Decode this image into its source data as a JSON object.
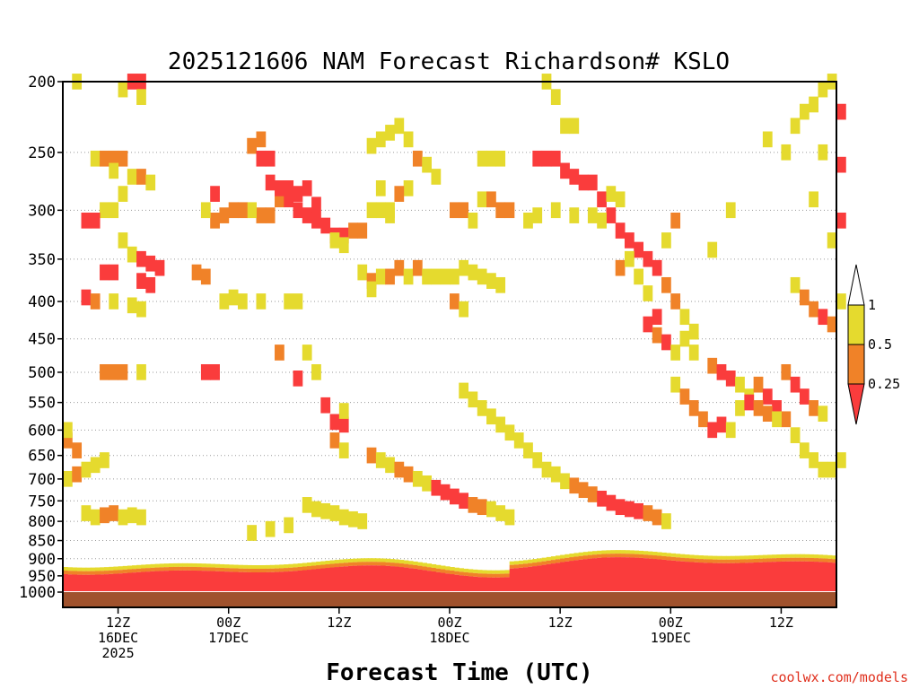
{
  "chart_data": {
    "type": "heatmap",
    "title": "2025121606 NAM Forecast Richardson# KSLO",
    "xlabel": "Forecast Time (UTC)",
    "credit": "coolwx.com/models",
    "y_scale": "log-pressure",
    "y_inverted": true,
    "ylim": [
      1000,
      200
    ],
    "yticks": [
      200,
      250,
      300,
      350,
      400,
      450,
      500,
      550,
      600,
      650,
      700,
      750,
      800,
      850,
      900,
      950,
      1000
    ],
    "grid": true,
    "x_range_hours": [
      0,
      84
    ],
    "xticks": [
      {
        "hour": 6,
        "line1": "12Z",
        "line2": "16DEC",
        "line3": "2025"
      },
      {
        "hour": 18,
        "line1": "00Z",
        "line2": "17DEC",
        "line3": ""
      },
      {
        "hour": 30,
        "line1": "12Z",
        "line2": "",
        "line3": ""
      },
      {
        "hour": 42,
        "line1": "00Z",
        "line2": "18DEC",
        "line3": ""
      },
      {
        "hour": 54,
        "line1": "12Z",
        "line2": "",
        "line3": ""
      },
      {
        "hour": 66,
        "line1": "00Z",
        "line2": "19DEC",
        "line3": ""
      },
      {
        "hour": 78,
        "line1": "12Z",
        "line2": "",
        "line3": ""
      }
    ],
    "legend": {
      "placement": "right",
      "levels": [
        "1",
        "0.5",
        "0.25"
      ],
      "bins": [
        {
          "range": "> 1",
          "color": "#ffffff"
        },
        {
          "range": "0.5 - 1",
          "color": "#e5da2e"
        },
        {
          "range": "0.25 - 0.5",
          "color": "#f08228"
        },
        {
          "range": "< 0.25",
          "color": "#fa3c3c"
        }
      ]
    },
    "colors": {
      "low": "#fa3c3c",
      "mid": "#f08228",
      "high": "#e5da2e",
      "ground": "#a0522d"
    },
    "near_surface_layer": {
      "description": "continuous layer with Richardson number below 0.25 near the ground"
    },
    "cells": [
      [
        1,
        200,
        1
      ],
      [
        3,
        205,
        0
      ],
      [
        6,
        205,
        1
      ],
      [
        7,
        200,
        3
      ],
      [
        8,
        200,
        3
      ],
      [
        8,
        210,
        1
      ],
      [
        3,
        255,
        1
      ],
      [
        4,
        255,
        2
      ],
      [
        5,
        255,
        2
      ],
      [
        6,
        255,
        2
      ],
      [
        5,
        265,
        1
      ],
      [
        7,
        270,
        1
      ],
      [
        8,
        270,
        2
      ],
      [
        9,
        275,
        1
      ],
      [
        6,
        285,
        1
      ],
      [
        4,
        300,
        1
      ],
      [
        5,
        300,
        1
      ],
      [
        2,
        310,
        3
      ],
      [
        3,
        310,
        3
      ],
      [
        6,
        330,
        1
      ],
      [
        7,
        345,
        1
      ],
      [
        8,
        350,
        3
      ],
      [
        9,
        355,
        3
      ],
      [
        10,
        360,
        3
      ],
      [
        4,
        365,
        3
      ],
      [
        5,
        365,
        3
      ],
      [
        8,
        375,
        3
      ],
      [
        9,
        380,
        3
      ],
      [
        2,
        395,
        3
      ],
      [
        3,
        400,
        2
      ],
      [
        5,
        400,
        1
      ],
      [
        7,
        405,
        1
      ],
      [
        8,
        410,
        1
      ],
      [
        4,
        500,
        2
      ],
      [
        5,
        500,
        2
      ],
      [
        6,
        500,
        2
      ],
      [
        8,
        500,
        1
      ],
      [
        15,
        500,
        3
      ],
      [
        16,
        500,
        3
      ],
      [
        20,
        245,
        2
      ],
      [
        21,
        240,
        2
      ],
      [
        21,
        255,
        3
      ],
      [
        22,
        255,
        3
      ],
      [
        24,
        280,
        3
      ],
      [
        25,
        285,
        3
      ],
      [
        26,
        280,
        3
      ],
      [
        27,
        295,
        3
      ],
      [
        23,
        290,
        2
      ],
      [
        22,
        305,
        2
      ],
      [
        21,
        305,
        2
      ],
      [
        20,
        300,
        1
      ],
      [
        19,
        300,
        2
      ],
      [
        18,
        300,
        2
      ],
      [
        17,
        305,
        2
      ],
      [
        16,
        310,
        2
      ],
      [
        15,
        300,
        1
      ],
      [
        16,
        285,
        3
      ],
      [
        22,
        275,
        3
      ],
      [
        23,
        280,
        3
      ],
      [
        24,
        290,
        3
      ],
      [
        25,
        300,
        3
      ],
      [
        26,
        305,
        3
      ],
      [
        27,
        310,
        3
      ],
      [
        28,
        315,
        3
      ],
      [
        29,
        325,
        3
      ],
      [
        30,
        325,
        3
      ],
      [
        31,
        320,
        2
      ],
      [
        32,
        320,
        2
      ],
      [
        29,
        330,
        1
      ],
      [
        30,
        335,
        1
      ],
      [
        14,
        365,
        2
      ],
      [
        15,
        370,
        2
      ],
      [
        17,
        400,
        1
      ],
      [
        18,
        395,
        1
      ],
      [
        19,
        400,
        1
      ],
      [
        21,
        400,
        1
      ],
      [
        24,
        400,
        1
      ],
      [
        25,
        400,
        1
      ],
      [
        23,
        470,
        2
      ],
      [
        25,
        510,
        3
      ],
      [
        26,
        470,
        1
      ],
      [
        27,
        500,
        1
      ],
      [
        28,
        555,
        3
      ],
      [
        29,
        585,
        3
      ],
      [
        30,
        590,
        3
      ],
      [
        30,
        565,
        1
      ],
      [
        29,
        620,
        2
      ],
      [
        30,
        640,
        1
      ],
      [
        33,
        300,
        1
      ],
      [
        34,
        300,
        1
      ],
      [
        35,
        305,
        1
      ],
      [
        32,
        365,
        1
      ],
      [
        33,
        375,
        2
      ],
      [
        34,
        370,
        1
      ],
      [
        35,
        370,
        2
      ],
      [
        36,
        360,
        2
      ],
      [
        37,
        370,
        1
      ],
      [
        33,
        385,
        1
      ],
      [
        33,
        245,
        1
      ],
      [
        34,
        240,
        1
      ],
      [
        35,
        235,
        1
      ],
      [
        36,
        230,
        1
      ],
      [
        37,
        240,
        1
      ],
      [
        38,
        255,
        2
      ],
      [
        39,
        260,
        1
      ],
      [
        40,
        270,
        1
      ],
      [
        37,
        280,
        1
      ],
      [
        36,
        285,
        2
      ],
      [
        34,
        280,
        1
      ],
      [
        35,
        300,
        1
      ],
      [
        38,
        360,
        2
      ],
      [
        39,
        370,
        1
      ],
      [
        40,
        370,
        1
      ],
      [
        41,
        370,
        1
      ],
      [
        42,
        370,
        1
      ],
      [
        43,
        360,
        1
      ],
      [
        44,
        365,
        1
      ],
      [
        45,
        370,
        1
      ],
      [
        46,
        375,
        1
      ],
      [
        47,
        380,
        1
      ],
      [
        42,
        400,
        2
      ],
      [
        43,
        410,
        1
      ],
      [
        42,
        300,
        2
      ],
      [
        43,
        300,
        2
      ],
      [
        44,
        310,
        1
      ],
      [
        45,
        290,
        1
      ],
      [
        46,
        290,
        2
      ],
      [
        47,
        300,
        2
      ],
      [
        48,
        300,
        2
      ],
      [
        46,
        255,
        1
      ],
      [
        47,
        255,
        1
      ],
      [
        45,
        255,
        1
      ],
      [
        52,
        200,
        1
      ],
      [
        53,
        210,
        1
      ],
      [
        54,
        230,
        1
      ],
      [
        55,
        230,
        1
      ],
      [
        51,
        255,
        3
      ],
      [
        52,
        255,
        3
      ],
      [
        53,
        255,
        3
      ],
      [
        54,
        265,
        3
      ],
      [
        55,
        270,
        3
      ],
      [
        56,
        275,
        3
      ],
      [
        57,
        275,
        3
      ],
      [
        58,
        290,
        3
      ],
      [
        59,
        305,
        3
      ],
      [
        59,
        285,
        1
      ],
      [
        60,
        290,
        1
      ],
      [
        50,
        310,
        1
      ],
      [
        51,
        305,
        1
      ],
      [
        53,
        300,
        1
      ],
      [
        55,
        305,
        1
      ],
      [
        57,
        305,
        1
      ],
      [
        58,
        310,
        1
      ],
      [
        60,
        320,
        3
      ],
      [
        61,
        330,
        3
      ],
      [
        62,
        340,
        3
      ],
      [
        63,
        350,
        3
      ],
      [
        64,
        360,
        3
      ],
      [
        65,
        380,
        2
      ],
      [
        66,
        400,
        2
      ],
      [
        67,
        420,
        1
      ],
      [
        68,
        440,
        1
      ],
      [
        60,
        360,
        2
      ],
      [
        61,
        350,
        1
      ],
      [
        62,
        370,
        1
      ],
      [
        63,
        390,
        1
      ],
      [
        65,
        330,
        1
      ],
      [
        66,
        310,
        2
      ],
      [
        64,
        420,
        3
      ],
      [
        63,
        430,
        3
      ],
      [
        64,
        445,
        2
      ],
      [
        65,
        455,
        3
      ],
      [
        66,
        470,
        1
      ],
      [
        70,
        340,
        1
      ],
      [
        72,
        300,
        1
      ],
      [
        76,
        240,
        1
      ],
      [
        78,
        250,
        1
      ],
      [
        79,
        230,
        1
      ],
      [
        80,
        220,
        1
      ],
      [
        81,
        215,
        1
      ],
      [
        82,
        205,
        1
      ],
      [
        83,
        200,
        1
      ],
      [
        82,
        250,
        1
      ],
      [
        81,
        290,
        1
      ],
      [
        79,
        380,
        1
      ],
      [
        80,
        395,
        2
      ],
      [
        81,
        410,
        2
      ],
      [
        82,
        420,
        3
      ],
      [
        83,
        430,
        2
      ],
      [
        84,
        400,
        1
      ],
      [
        84,
        220,
        3
      ],
      [
        84,
        260,
        3
      ],
      [
        84,
        310,
        3
      ],
      [
        83,
        330,
        1
      ],
      [
        66,
        520,
        1
      ],
      [
        67,
        540,
        2
      ],
      [
        68,
        560,
        2
      ],
      [
        69,
        580,
        2
      ],
      [
        70,
        600,
        3
      ],
      [
        71,
        590,
        3
      ],
      [
        72,
        600,
        1
      ],
      [
        73,
        560,
        1
      ],
      [
        74,
        540,
        1
      ],
      [
        75,
        520,
        2
      ],
      [
        76,
        540,
        3
      ],
      [
        77,
        560,
        3
      ],
      [
        78,
        580,
        2
      ],
      [
        79,
        610,
        1
      ],
      [
        80,
        640,
        1
      ],
      [
        81,
        660,
        1
      ],
      [
        82,
        680,
        1
      ],
      [
        83,
        680,
        1
      ],
      [
        84,
        660,
        1
      ],
      [
        67,
        450,
        1
      ],
      [
        68,
        470,
        1
      ],
      [
        70,
        490,
        2
      ],
      [
        71,
        500,
        3
      ],
      [
        72,
        510,
        3
      ],
      [
        73,
        520,
        1
      ],
      [
        74,
        550,
        3
      ],
      [
        75,
        560,
        2
      ],
      [
        76,
        570,
        2
      ],
      [
        77,
        580,
        1
      ],
      [
        78,
        500,
        2
      ],
      [
        79,
        520,
        3
      ],
      [
        80,
        540,
        3
      ],
      [
        81,
        560,
        2
      ],
      [
        82,
        570,
        1
      ],
      [
        43,
        530,
        1
      ],
      [
        44,
        545,
        1
      ],
      [
        45,
        560,
        1
      ],
      [
        46,
        575,
        1
      ],
      [
        47,
        590,
        1
      ],
      [
        48,
        605,
        1
      ],
      [
        49,
        620,
        1
      ],
      [
        50,
        640,
        1
      ],
      [
        51,
        660,
        1
      ],
      [
        52,
        680,
        1
      ],
      [
        53,
        690,
        1
      ],
      [
        54,
        705,
        1
      ],
      [
        55,
        715,
        2
      ],
      [
        56,
        725,
        2
      ],
      [
        57,
        735,
        2
      ],
      [
        58,
        745,
        3
      ],
      [
        59,
        755,
        3
      ],
      [
        60,
        765,
        3
      ],
      [
        61,
        770,
        3
      ],
      [
        62,
        775,
        3
      ],
      [
        63,
        780,
        2
      ],
      [
        64,
        790,
        2
      ],
      [
        65,
        800,
        1
      ],
      [
        33,
        650,
        2
      ],
      [
        34,
        660,
        1
      ],
      [
        35,
        670,
        1
      ],
      [
        36,
        680,
        2
      ],
      [
        37,
        690,
        2
      ],
      [
        38,
        700,
        1
      ],
      [
        39,
        710,
        1
      ],
      [
        40,
        720,
        3
      ],
      [
        41,
        730,
        3
      ],
      [
        42,
        740,
        3
      ],
      [
        43,
        750,
        3
      ],
      [
        44,
        760,
        2
      ],
      [
        45,
        765,
        2
      ],
      [
        46,
        770,
        1
      ],
      [
        47,
        780,
        1
      ],
      [
        48,
        790,
        1
      ],
      [
        26,
        760,
        1
      ],
      [
        27,
        770,
        1
      ],
      [
        28,
        775,
        1
      ],
      [
        29,
        780,
        1
      ],
      [
        30,
        790,
        1
      ],
      [
        31,
        795,
        1
      ],
      [
        32,
        800,
        1
      ],
      [
        24,
        810,
        1
      ],
      [
        22,
        820,
        1
      ],
      [
        20,
        830,
        1
      ],
      [
        2,
        780,
        1
      ],
      [
        3,
        790,
        1
      ],
      [
        4,
        785,
        2
      ],
      [
        5,
        780,
        2
      ],
      [
        6,
        790,
        1
      ],
      [
        7,
        785,
        1
      ],
      [
        8,
        790,
        1
      ],
      [
        0,
        700,
        1
      ],
      [
        1,
        690,
        2
      ],
      [
        2,
        680,
        1
      ],
      [
        3,
        670,
        1
      ],
      [
        4,
        660,
        1
      ],
      [
        0,
        620,
        2
      ],
      [
        1,
        640,
        2
      ],
      [
        0,
        600,
        1
      ]
    ]
  }
}
